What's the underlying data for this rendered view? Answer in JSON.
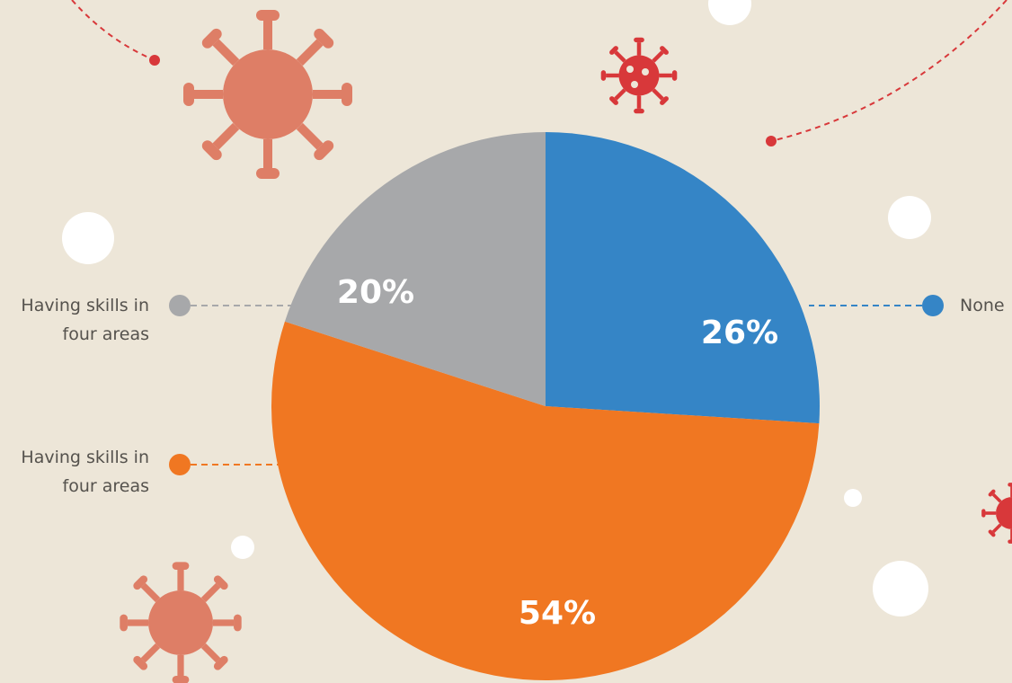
{
  "chart_data": {
    "type": "pie",
    "categories": [
      "None",
      "Having skills in four areas",
      "Having skills in four areas"
    ],
    "values": [
      26,
      54,
      20
    ],
    "value_labels": [
      "26%",
      "54%",
      "20%"
    ],
    "colors": [
      "#3585c6",
      "#f07722",
      "#a7a8aa"
    ]
  }
}
